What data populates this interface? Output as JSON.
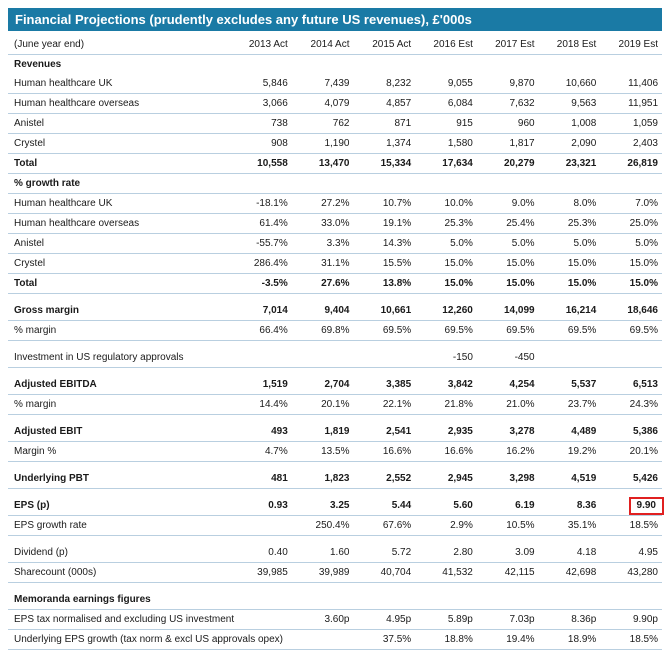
{
  "title": "Financial Projections (prudently excludes any future US revenues), £'000s",
  "header_row": {
    "label": "(June year end)",
    "years": [
      "2013 Act",
      "2014 Act",
      "2015 Act",
      "2016 Est",
      "2017 Est",
      "2018 Est",
      "2019 Est"
    ]
  },
  "rows": [
    {
      "label": "Revenues",
      "bold": true,
      "values": [
        "",
        "",
        "",
        "",
        "",
        "",
        ""
      ],
      "border": false
    },
    {
      "label": "Human healthcare UK",
      "bold": false,
      "values": [
        "5,846",
        "7,439",
        "8,232",
        "9,055",
        "9,870",
        "10,660",
        "11,406"
      ],
      "border": true
    },
    {
      "label": "Human healthcare overseas",
      "bold": false,
      "values": [
        "3,066",
        "4,079",
        "4,857",
        "6,084",
        "7,632",
        "9,563",
        "11,951"
      ],
      "border": true
    },
    {
      "label": "Anistel",
      "bold": false,
      "values": [
        "738",
        "762",
        "871",
        "915",
        "960",
        "1,008",
        "1,059"
      ],
      "border": true
    },
    {
      "label": "Crystel",
      "bold": false,
      "values": [
        "908",
        "1,190",
        "1,374",
        "1,580",
        "1,817",
        "2,090",
        "2,403"
      ],
      "border": true
    },
    {
      "label": "Total",
      "bold": true,
      "values": [
        "10,558",
        "13,470",
        "15,334",
        "17,634",
        "20,279",
        "23,321",
        "26,819"
      ],
      "border": true
    },
    {
      "label": "% growth rate",
      "bold": true,
      "values": [
        "",
        "",
        "",
        "",
        "",
        "",
        ""
      ],
      "border": true
    },
    {
      "label": "Human healthcare UK",
      "bold": false,
      "values": [
        "-18.1%",
        "27.2%",
        "10.7%",
        "10.0%",
        "9.0%",
        "8.0%",
        "7.0%"
      ],
      "border": true
    },
    {
      "label": "Human healthcare overseas",
      "bold": false,
      "values": [
        "61.4%",
        "33.0%",
        "19.1%",
        "25.3%",
        "25.4%",
        "25.3%",
        "25.0%"
      ],
      "border": true
    },
    {
      "label": "Anistel",
      "bold": false,
      "values": [
        "-55.7%",
        "3.3%",
        "14.3%",
        "5.0%",
        "5.0%",
        "5.0%",
        "5.0%"
      ],
      "border": true
    },
    {
      "label": "Crystel",
      "bold": false,
      "values": [
        "286.4%",
        "31.1%",
        "15.5%",
        "15.0%",
        "15.0%",
        "15.0%",
        "15.0%"
      ],
      "border": true
    },
    {
      "label": "Total",
      "bold": true,
      "values": [
        "-3.5%",
        "27.6%",
        "13.8%",
        "15.0%",
        "15.0%",
        "15.0%",
        "15.0%"
      ],
      "border": true
    },
    {
      "gap": true
    },
    {
      "label": "Gross margin",
      "bold": true,
      "values": [
        "7,014",
        "9,404",
        "10,661",
        "12,260",
        "14,099",
        "16,214",
        "18,646"
      ],
      "border": true
    },
    {
      "label": "% margin",
      "bold": false,
      "values": [
        "66.4%",
        "69.8%",
        "69.5%",
        "69.5%",
        "69.5%",
        "69.5%",
        "69.5%"
      ],
      "border": true
    },
    {
      "gap": true
    },
    {
      "label": "Investment in US regulatory approvals",
      "bold": false,
      "values": [
        "",
        "",
        "",
        "-150",
        "-450",
        "",
        ""
      ],
      "border": true
    },
    {
      "gap": true
    },
    {
      "label": "Adjusted EBITDA",
      "bold": true,
      "values": [
        "1,519",
        "2,704",
        "3,385",
        "3,842",
        "4,254",
        "5,537",
        "6,513"
      ],
      "border": true
    },
    {
      "label": "% margin",
      "bold": false,
      "values": [
        "14.4%",
        "20.1%",
        "22.1%",
        "21.8%",
        "21.0%",
        "23.7%",
        "24.3%"
      ],
      "border": true
    },
    {
      "gap": true
    },
    {
      "label": "Adjusted EBIT",
      "bold": true,
      "values": [
        "493",
        "1,819",
        "2,541",
        "2,935",
        "3,278",
        "4,489",
        "5,386"
      ],
      "border": true
    },
    {
      "label": "Margin %",
      "bold": false,
      "values": [
        "4.7%",
        "13.5%",
        "16.6%",
        "16.6%",
        "16.2%",
        "19.2%",
        "20.1%"
      ],
      "border": true
    },
    {
      "gap": true
    },
    {
      "label": "Underlying PBT",
      "bold": true,
      "values": [
        "481",
        "1,823",
        "2,552",
        "2,945",
        "3,298",
        "4,519",
        "5,426"
      ],
      "border": true
    },
    {
      "gap": true
    },
    {
      "label": "EPS (p)",
      "bold": true,
      "values": [
        "0.93",
        "3.25",
        "5.44",
        "5.60",
        "6.19",
        "8.36",
        "9.90"
      ],
      "border": true,
      "highlight_col": 6
    },
    {
      "label": "EPS growth rate",
      "bold": false,
      "values": [
        "",
        "250.4%",
        "67.6%",
        "2.9%",
        "10.5%",
        "35.1%",
        "18.5%"
      ],
      "border": true
    },
    {
      "gap": true
    },
    {
      "label": "Dividend (p)",
      "bold": false,
      "values": [
        "0.40",
        "1.60",
        "5.72",
        "2.80",
        "3.09",
        "4.18",
        "4.95"
      ],
      "border": true
    },
    {
      "label": "Sharecount (000s)",
      "bold": false,
      "values": [
        "39,985",
        "39,989",
        "40,704",
        "41,532",
        "42,115",
        "42,698",
        "43,280"
      ],
      "border": true
    },
    {
      "gap": true
    },
    {
      "label": "Memoranda earnings figures",
      "bold": true,
      "values": [
        "",
        "",
        "",
        "",
        "",
        "",
        ""
      ],
      "border": true
    },
    {
      "label": "EPS tax normalised and excluding US investment",
      "bold": false,
      "values": [
        "",
        "3.60p",
        "4.95p",
        "5.89p",
        "7.03p",
        "8.36p",
        "9.90p"
      ],
      "border": true
    },
    {
      "label": "Underlying EPS growth (tax norm & excl US approvals opex)",
      "bold": false,
      "values": [
        "",
        "",
        "37.5%",
        "18.8%",
        "19.4%",
        "18.9%",
        "18.5%"
      ],
      "border": true
    }
  ],
  "colors": {
    "header_bg": "#1a7aa5",
    "rule": "#b9cfe0",
    "highlight": "#e02020"
  }
}
